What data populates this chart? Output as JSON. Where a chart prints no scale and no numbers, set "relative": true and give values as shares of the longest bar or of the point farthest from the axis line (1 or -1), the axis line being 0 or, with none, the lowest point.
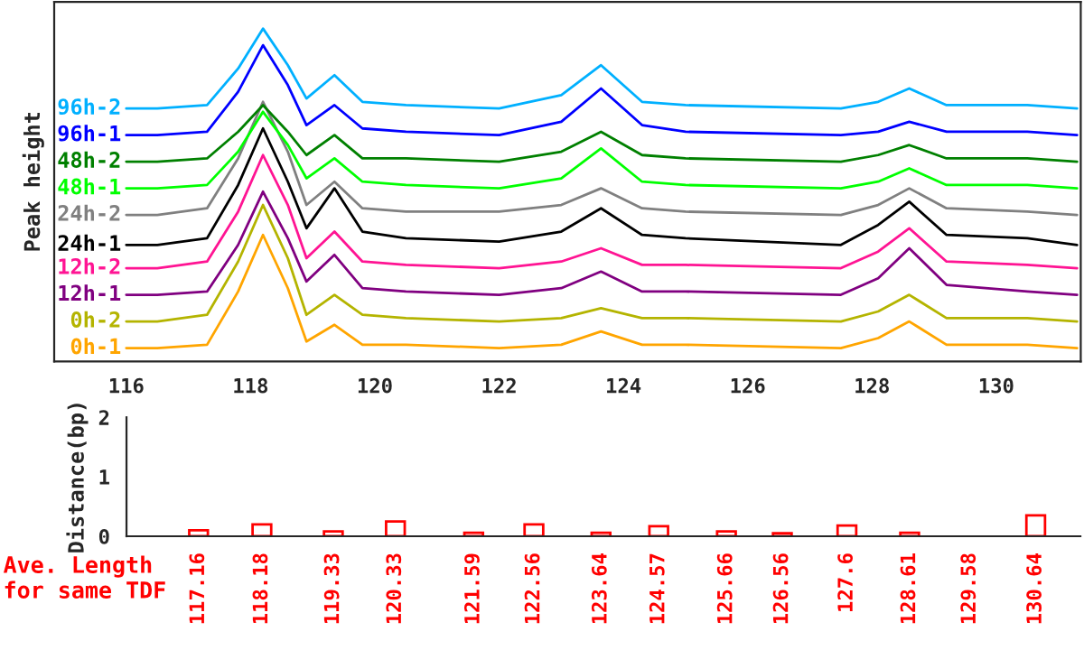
{
  "chart_data": [
    {
      "type": "line",
      "ylabel": "Peak height",
      "relative": true,
      "tick_labels": "x",
      "grid": false,
      "x": [
        116.0,
        116.5,
        117.3,
        117.8,
        118.2,
        118.6,
        118.9,
        119.35,
        119.8,
        120.5,
        122.0,
        123.0,
        123.64,
        124.3,
        125.0,
        127.5,
        128.1,
        128.6,
        129.2,
        130.5,
        131.3
      ],
      "xlim": [
        114.84,
        131.36
      ],
      "xticks": [
        116,
        118,
        120,
        122,
        124,
        126,
        128,
        130
      ],
      "series": [
        {
          "name": "0h-1",
          "color": "#ffa500",
          "values": [
            0.04,
            0.04,
            0.05,
            0.21,
            0.38,
            0.22,
            0.06,
            0.11,
            0.05,
            0.05,
            0.04,
            0.05,
            0.09,
            0.05,
            0.05,
            0.04,
            0.07,
            0.12,
            0.05,
            0.05,
            0.04
          ]
        },
        {
          "name": "0h-2",
          "color": "#b4b400",
          "values": [
            0.12,
            0.12,
            0.14,
            0.3,
            0.47,
            0.31,
            0.14,
            0.2,
            0.14,
            0.13,
            0.12,
            0.13,
            0.16,
            0.13,
            0.13,
            0.12,
            0.15,
            0.2,
            0.13,
            0.13,
            0.12
          ]
        },
        {
          "name": "12h-1",
          "color": "#800080",
          "values": [
            0.2,
            0.2,
            0.21,
            0.35,
            0.51,
            0.37,
            0.24,
            0.32,
            0.22,
            0.21,
            0.2,
            0.22,
            0.27,
            0.21,
            0.21,
            0.2,
            0.25,
            0.34,
            0.23,
            0.21,
            0.2
          ]
        },
        {
          "name": "12h-2",
          "color": "#ff1493",
          "values": [
            0.28,
            0.28,
            0.3,
            0.45,
            0.62,
            0.47,
            0.31,
            0.39,
            0.3,
            0.29,
            0.28,
            0.3,
            0.34,
            0.29,
            0.29,
            0.28,
            0.33,
            0.4,
            0.3,
            0.29,
            0.28
          ]
        },
        {
          "name": "24h-1",
          "color": "#000000",
          "values": [
            0.35,
            0.35,
            0.37,
            0.53,
            0.7,
            0.54,
            0.4,
            0.52,
            0.39,
            0.37,
            0.36,
            0.39,
            0.46,
            0.38,
            0.37,
            0.35,
            0.41,
            0.48,
            0.38,
            0.37,
            0.35
          ]
        },
        {
          "name": "24h-2",
          "color": "#808080",
          "values": [
            0.44,
            0.44,
            0.46,
            0.61,
            0.78,
            0.63,
            0.47,
            0.54,
            0.46,
            0.45,
            0.45,
            0.47,
            0.52,
            0.46,
            0.45,
            0.44,
            0.47,
            0.52,
            0.46,
            0.45,
            0.44
          ]
        },
        {
          "name": "48h-1",
          "color": "#00ff00",
          "values": [
            0.52,
            0.52,
            0.53,
            0.63,
            0.75,
            0.65,
            0.55,
            0.61,
            0.54,
            0.53,
            0.52,
            0.55,
            0.64,
            0.54,
            0.53,
            0.52,
            0.54,
            0.58,
            0.53,
            0.53,
            0.52
          ]
        },
        {
          "name": "48h-2",
          "color": "#008000",
          "values": [
            0.6,
            0.6,
            0.61,
            0.69,
            0.77,
            0.69,
            0.62,
            0.68,
            0.61,
            0.61,
            0.6,
            0.63,
            0.69,
            0.62,
            0.61,
            0.6,
            0.62,
            0.65,
            0.61,
            0.61,
            0.6
          ]
        },
        {
          "name": "96h-1",
          "color": "#0000ff",
          "values": [
            0.68,
            0.68,
            0.69,
            0.81,
            0.95,
            0.83,
            0.71,
            0.77,
            0.7,
            0.69,
            0.68,
            0.72,
            0.82,
            0.71,
            0.69,
            0.68,
            0.69,
            0.72,
            0.69,
            0.69,
            0.68
          ]
        },
        {
          "name": "96h-2",
          "color": "#00b0ff",
          "values": [
            0.76,
            0.76,
            0.77,
            0.88,
            1.0,
            0.89,
            0.79,
            0.86,
            0.78,
            0.77,
            0.76,
            0.8,
            0.89,
            0.78,
            0.77,
            0.76,
            0.78,
            0.82,
            0.77,
            0.77,
            0.76
          ]
        }
      ]
    },
    {
      "type": "bar",
      "ylabel": "Distance(bp)",
      "color": "#ff0000",
      "x": [
        117.16,
        118.18,
        119.33,
        120.33,
        121.59,
        122.56,
        123.64,
        124.57,
        125.66,
        126.56,
        127.6,
        128.61,
        129.58,
        130.64
      ],
      "values": [
        0.1,
        0.2,
        0.08,
        0.25,
        0.06,
        0.2,
        0.06,
        0.17,
        0.08,
        0.05,
        0.18,
        0.06,
        null,
        0.35
      ],
      "xlim": [
        116,
        131.36
      ],
      "xticks": [
        {
          "value": 117.16,
          "label": "117.16"
        },
        {
          "value": 118.18,
          "label": "118.18"
        },
        {
          "value": 119.33,
          "label": "119.33"
        },
        {
          "value": 120.33,
          "label": "120.33"
        },
        {
          "value": 121.59,
          "label": "121.59"
        },
        {
          "value": 122.56,
          "label": "122.56"
        },
        {
          "value": 123.64,
          "label": "123.64"
        },
        {
          "value": 124.57,
          "label": "124.57"
        },
        {
          "value": 125.66,
          "label": "125.66"
        },
        {
          "value": 126.56,
          "label": "126.56"
        },
        {
          "value": 127.6,
          "label": "127.6"
        },
        {
          "value": 128.61,
          "label": "128.61"
        },
        {
          "value": 129.58,
          "label": "129.58"
        },
        {
          "value": 130.64,
          "label": "130.64"
        }
      ],
      "ylim": [
        0,
        2
      ],
      "yticks": [
        0,
        1,
        2
      ],
      "annotations": [
        "Ave. Length\nfor same TDF"
      ]
    }
  ]
}
